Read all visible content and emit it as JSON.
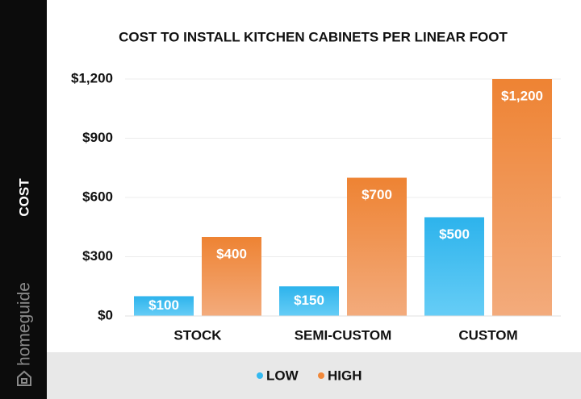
{
  "chart_data": {
    "type": "bar",
    "title": "COST TO INSTALL KITCHEN CABINETS PER LINEAR FOOT",
    "y_label": "COST",
    "watermark": "homeguide",
    "categories": [
      "STOCK",
      "SEMI-CUSTOM",
      "CUSTOM"
    ],
    "series": [
      {
        "name": "LOW",
        "color": "#34b9f0",
        "values": [
          100,
          150,
          500
        ],
        "value_labels": [
          "$100",
          "$150",
          "$500"
        ]
      },
      {
        "name": "HIGH",
        "color": "#f0883a",
        "values": [
          400,
          700,
          1200
        ],
        "value_labels": [
          "$400",
          "$700",
          "$1,200"
        ]
      }
    ],
    "ylim": [
      0,
      1200
    ],
    "yticks": [
      {
        "value": 0,
        "label": "$0"
      },
      {
        "value": 300,
        "label": "$300"
      },
      {
        "value": 600,
        "label": "$600"
      },
      {
        "value": 900,
        "label": "$900"
      },
      {
        "value": 1200,
        "label": "$1,200"
      }
    ],
    "grid": true
  }
}
